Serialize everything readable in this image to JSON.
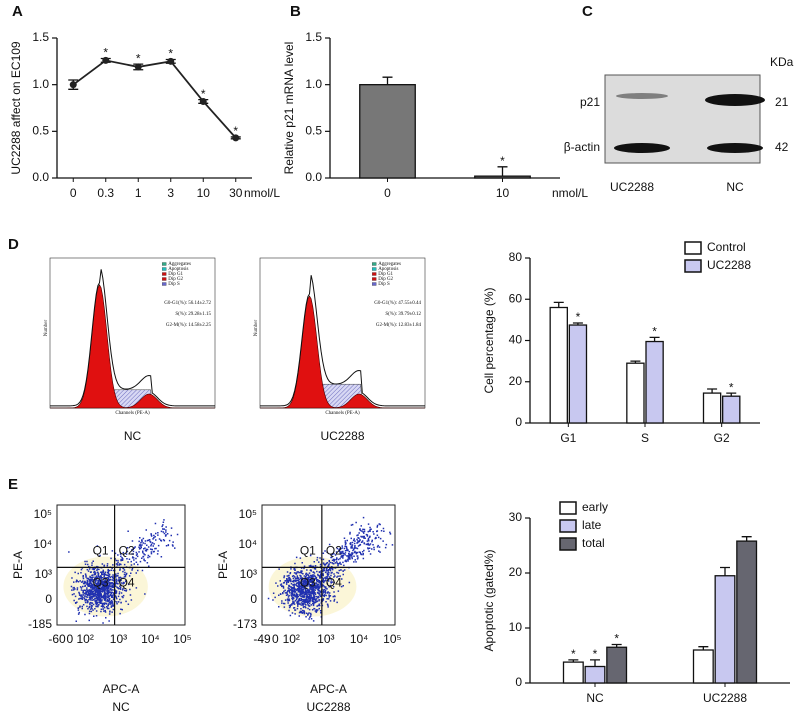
{
  "chart_data": [
    {
      "type": "line",
      "panel": "A",
      "ylabel": "UC2288 affect on EC109",
      "x_unit": "nmol/L",
      "categories": [
        "0",
        "0.3",
        "1",
        "3",
        "10",
        "30"
      ],
      "values": [
        1.0,
        1.26,
        1.19,
        1.25,
        0.82,
        0.43
      ],
      "errors": [
        0.05,
        0.02,
        0.03,
        0.02,
        0.02,
        0.01
      ],
      "significance": [
        null,
        "*",
        "*",
        "*",
        "*",
        "*"
      ],
      "color": "#222222",
      "ylim": [
        0,
        1.5
      ],
      "yticks": [
        {
          "value": 0,
          "label": "0.0"
        },
        {
          "value": 0.5,
          "label": "0.5"
        },
        {
          "value": 1,
          "label": "1.0"
        },
        {
          "value": 1.5,
          "label": "1.5"
        }
      ]
    },
    {
      "type": "bar",
      "panel": "B",
      "ylabel": "Relative p21 mRNA level",
      "x_unit": "nmol/L",
      "categories": [
        "0",
        "10"
      ],
      "series": [
        {
          "color": "#777777",
          "values": [
            1.0,
            0.02
          ],
          "errors": [
            0.08,
            0.1
          ],
          "significance": [
            null,
            "*"
          ]
        }
      ],
      "ylim": [
        0,
        1.5
      ],
      "yticks": [
        {
          "value": 0,
          "label": "0.0"
        },
        {
          "value": 0.5,
          "label": "0.5"
        },
        {
          "value": 1,
          "label": "1.0"
        },
        {
          "value": 1.5,
          "label": "1.5"
        }
      ]
    },
    {
      "type": "bar",
      "ylabel": "Cell percentage (%)",
      "categories": [
        "G1",
        "S",
        "G2"
      ],
      "series": [
        {
          "name": "Control",
          "color": "#ffffff",
          "values": [
            56,
            29,
            14.5
          ],
          "errors": [
            2.5,
            1,
            2
          ],
          "significance": [
            null,
            null,
            null
          ]
        },
        {
          "name": "UC2288",
          "color": "#c8c8f0",
          "values": [
            47.5,
            39.5,
            13
          ],
          "errors": [
            1,
            2,
            1.5
          ],
          "significance": [
            "*",
            "*",
            "*"
          ]
        }
      ],
      "ylim": [
        0,
        80
      ],
      "yticks": [
        0,
        20,
        40,
        60,
        80
      ],
      "legend": "top-right"
    },
    {
      "type": "bar",
      "ylabel": "Apoptotic (gated%)",
      "categories": [
        "NC",
        "UC2288"
      ],
      "series": [
        {
          "name": "early",
          "color": "#ffffff",
          "values": [
            3.8,
            6
          ],
          "errors": [
            0.4,
            0.6
          ],
          "significance": [
            "*",
            null
          ]
        },
        {
          "name": "late",
          "color": "#c8c8f0",
          "values": [
            3,
            19.5
          ],
          "errors": [
            1.2,
            1.5
          ],
          "significance": [
            "*",
            null
          ]
        },
        {
          "name": "total",
          "color": "#666670",
          "values": [
            6.5,
            25.8
          ],
          "errors": [
            0.5,
            0.8
          ],
          "significance": [
            "*",
            null
          ]
        }
      ],
      "ylim": [
        0,
        30
      ],
      "yticks": [
        0,
        10,
        20,
        30
      ],
      "legend": "top-left"
    }
  ],
  "blot": {
    "panel": "C",
    "unit": "KDa",
    "rows": [
      {
        "label": "p21",
        "size": "21"
      },
      {
        "label": "β-actin",
        "size": "42"
      }
    ],
    "lanes": [
      "UC2288",
      "NC"
    ]
  },
  "cell_cycle": {
    "panel": "D",
    "legend": [
      "Aggregates",
      "Apoptosis",
      "Dip G1",
      "Dip G2",
      "Dip S"
    ],
    "xlabel": "Channels (PE-A)",
    "ylabel": "Number",
    "plots": [
      {
        "caption": "NC",
        "stats": [
          "G0-G1(%): 56.14±2.72",
          "S(%): 29.28±1.15",
          "G2-M(%): 14.58±2.25"
        ]
      },
      {
        "caption": "UC2288",
        "stats": [
          "G0-G1(%): 47.55±0.44",
          "S(%): 39.79±0.12",
          "G2-M(%): 12.83±1.84"
        ]
      }
    ]
  },
  "annexin": {
    "panel": "E",
    "quadrants": [
      "Q1",
      "Q2",
      "Q3",
      "Q4"
    ],
    "xlabel": "APC-A",
    "ylabel": "PE-A",
    "plots": [
      {
        "caption": "NC",
        "yticks": [
          "10⁵",
          "10⁴",
          "10³",
          "0",
          "-185"
        ],
        "xticks": [
          "-60",
          "0",
          "10²",
          "10³",
          "10⁴",
          "10⁵"
        ]
      },
      {
        "caption": "UC2288",
        "yticks": [
          "10⁵",
          "10⁴",
          "10³",
          "0",
          "-173"
        ],
        "xticks": [
          "-49",
          "0",
          "10²",
          "10³",
          "10⁴",
          "10⁵"
        ]
      }
    ]
  }
}
